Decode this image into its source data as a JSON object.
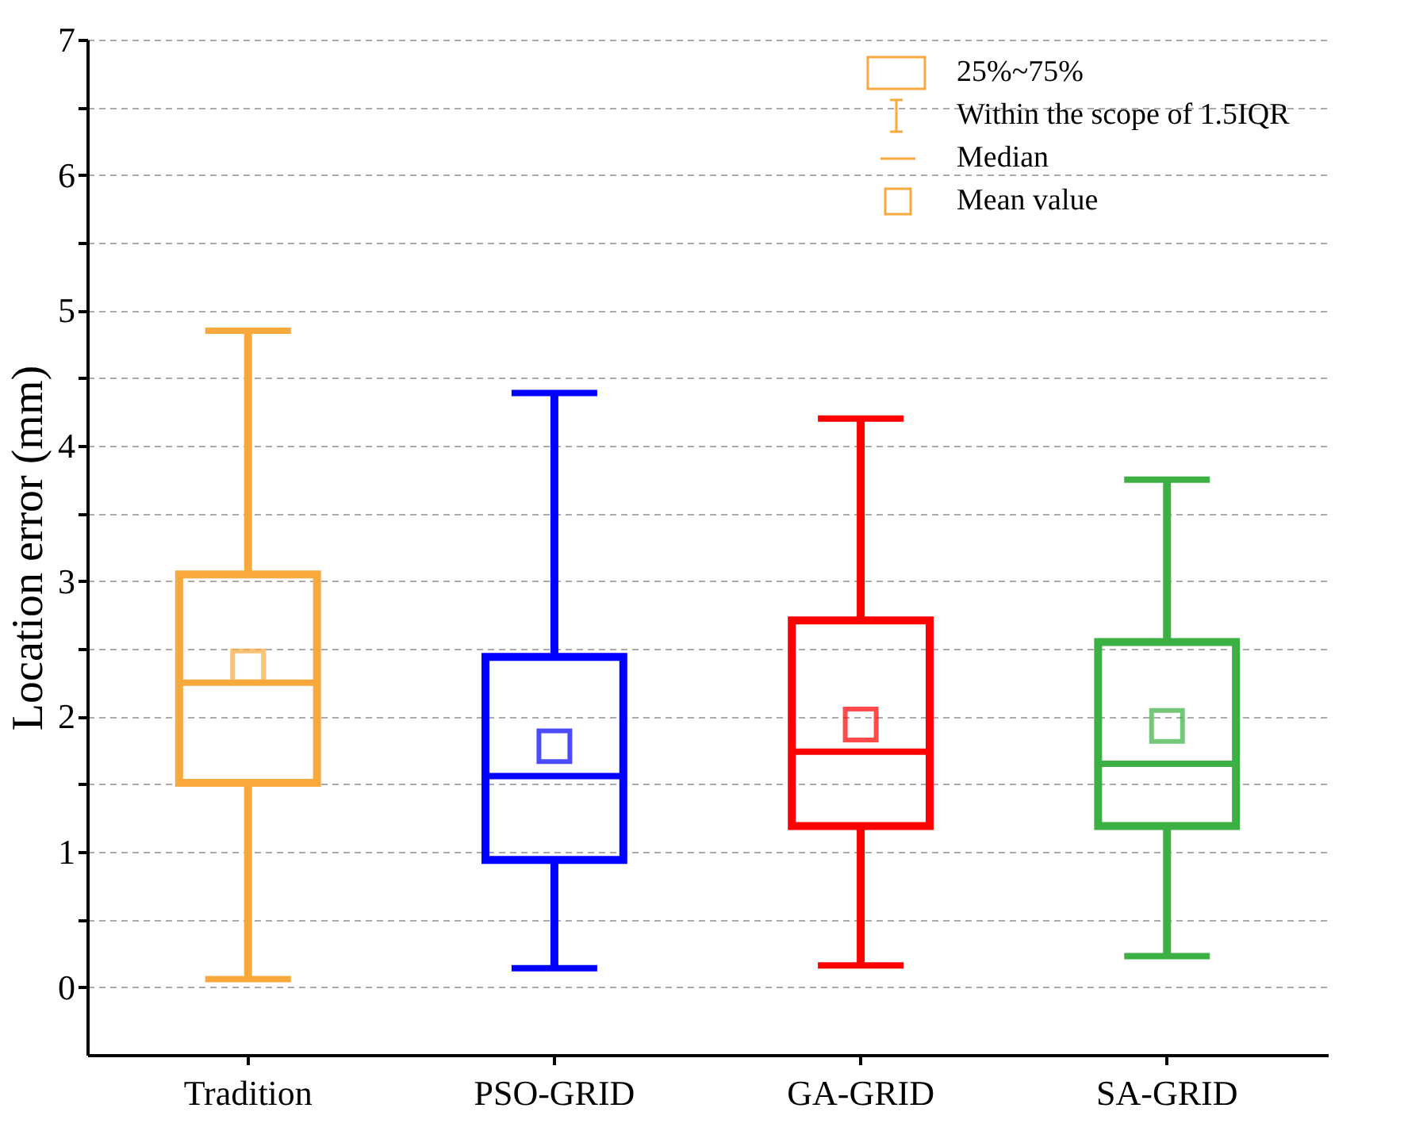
{
  "chart_data": {
    "type": "box",
    "ylabel": "Location error (mm)",
    "categories": [
      "Tradition",
      "PSO-GRID",
      "GA-GRID",
      "SA-GRID"
    ],
    "colors": [
      "#f9a93b",
      "#0000ff",
      "#ff0000",
      "#3cb043"
    ],
    "boxes": [
      {
        "low": 0.06,
        "q1": 1.51,
        "median": 2.25,
        "q3": 3.05,
        "high": 4.85,
        "mean": 2.37
      },
      {
        "low": 0.14,
        "q1": 0.94,
        "median": 1.56,
        "q3": 2.44,
        "high": 4.39,
        "mean": 1.78
      },
      {
        "low": 0.16,
        "q1": 1.19,
        "median": 1.74,
        "q3": 2.71,
        "high": 4.2,
        "mean": 1.94
      },
      {
        "low": 0.23,
        "q1": 1.19,
        "median": 1.65,
        "q3": 2.55,
        "high": 3.75,
        "mean": 1.93
      }
    ],
    "ylim": [
      -0.5,
      7
    ],
    "yticks": [
      0,
      {
        "value": 0.5,
        "label": null
      },
      1,
      {
        "value": 1.5,
        "label": null
      },
      2,
      {
        "value": 2.5,
        "label": null
      },
      3,
      {
        "value": 3.5,
        "label": null
      },
      4,
      {
        "value": 4.5,
        "label": null
      },
      5,
      {
        "value": 5.5,
        "label": null
      },
      6,
      {
        "value": 6.5,
        "label": null
      },
      7
    ],
    "grid": "y",
    "annotations": [
      "25%~75%",
      "Within the scope of 1.5IQR",
      "Median",
      "Mean value"
    ]
  }
}
